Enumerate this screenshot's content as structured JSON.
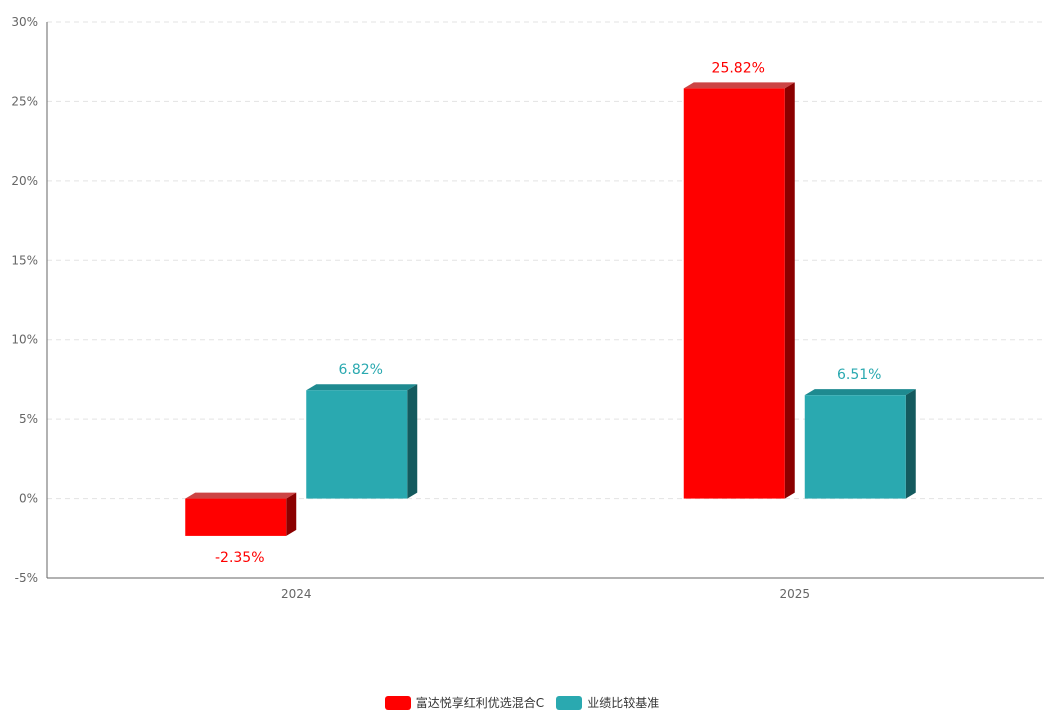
{
  "chart_data": {
    "type": "bar",
    "categories": [
      "2024",
      "2025"
    ],
    "series": [
      {
        "name": "富达悦享红利优选混合C",
        "values": [
          -2.35,
          25.82
        ],
        "labels": [
          "-2.35%",
          "25.82%"
        ],
        "color": "#ff0000",
        "top_color": "#cc4444",
        "side_color": "#8b0000"
      },
      {
        "name": "业绩比较基准",
        "values": [
          6.82,
          6.51
        ],
        "labels": [
          "6.82%",
          "6.51%"
        ],
        "color": "#2aa9b0",
        "top_color": "#1e8a90",
        "side_color": "#145a5e"
      }
    ],
    "ylim": [
      -5,
      30
    ],
    "yticks": [
      30,
      25,
      20,
      15,
      10,
      5,
      0,
      -5
    ],
    "ytick_labels": [
      "30%",
      "25%",
      "20%",
      "15%",
      "10%",
      "5%",
      "0%",
      "-5%"
    ],
    "grid": true,
    "legend_position": "bottom-center"
  }
}
